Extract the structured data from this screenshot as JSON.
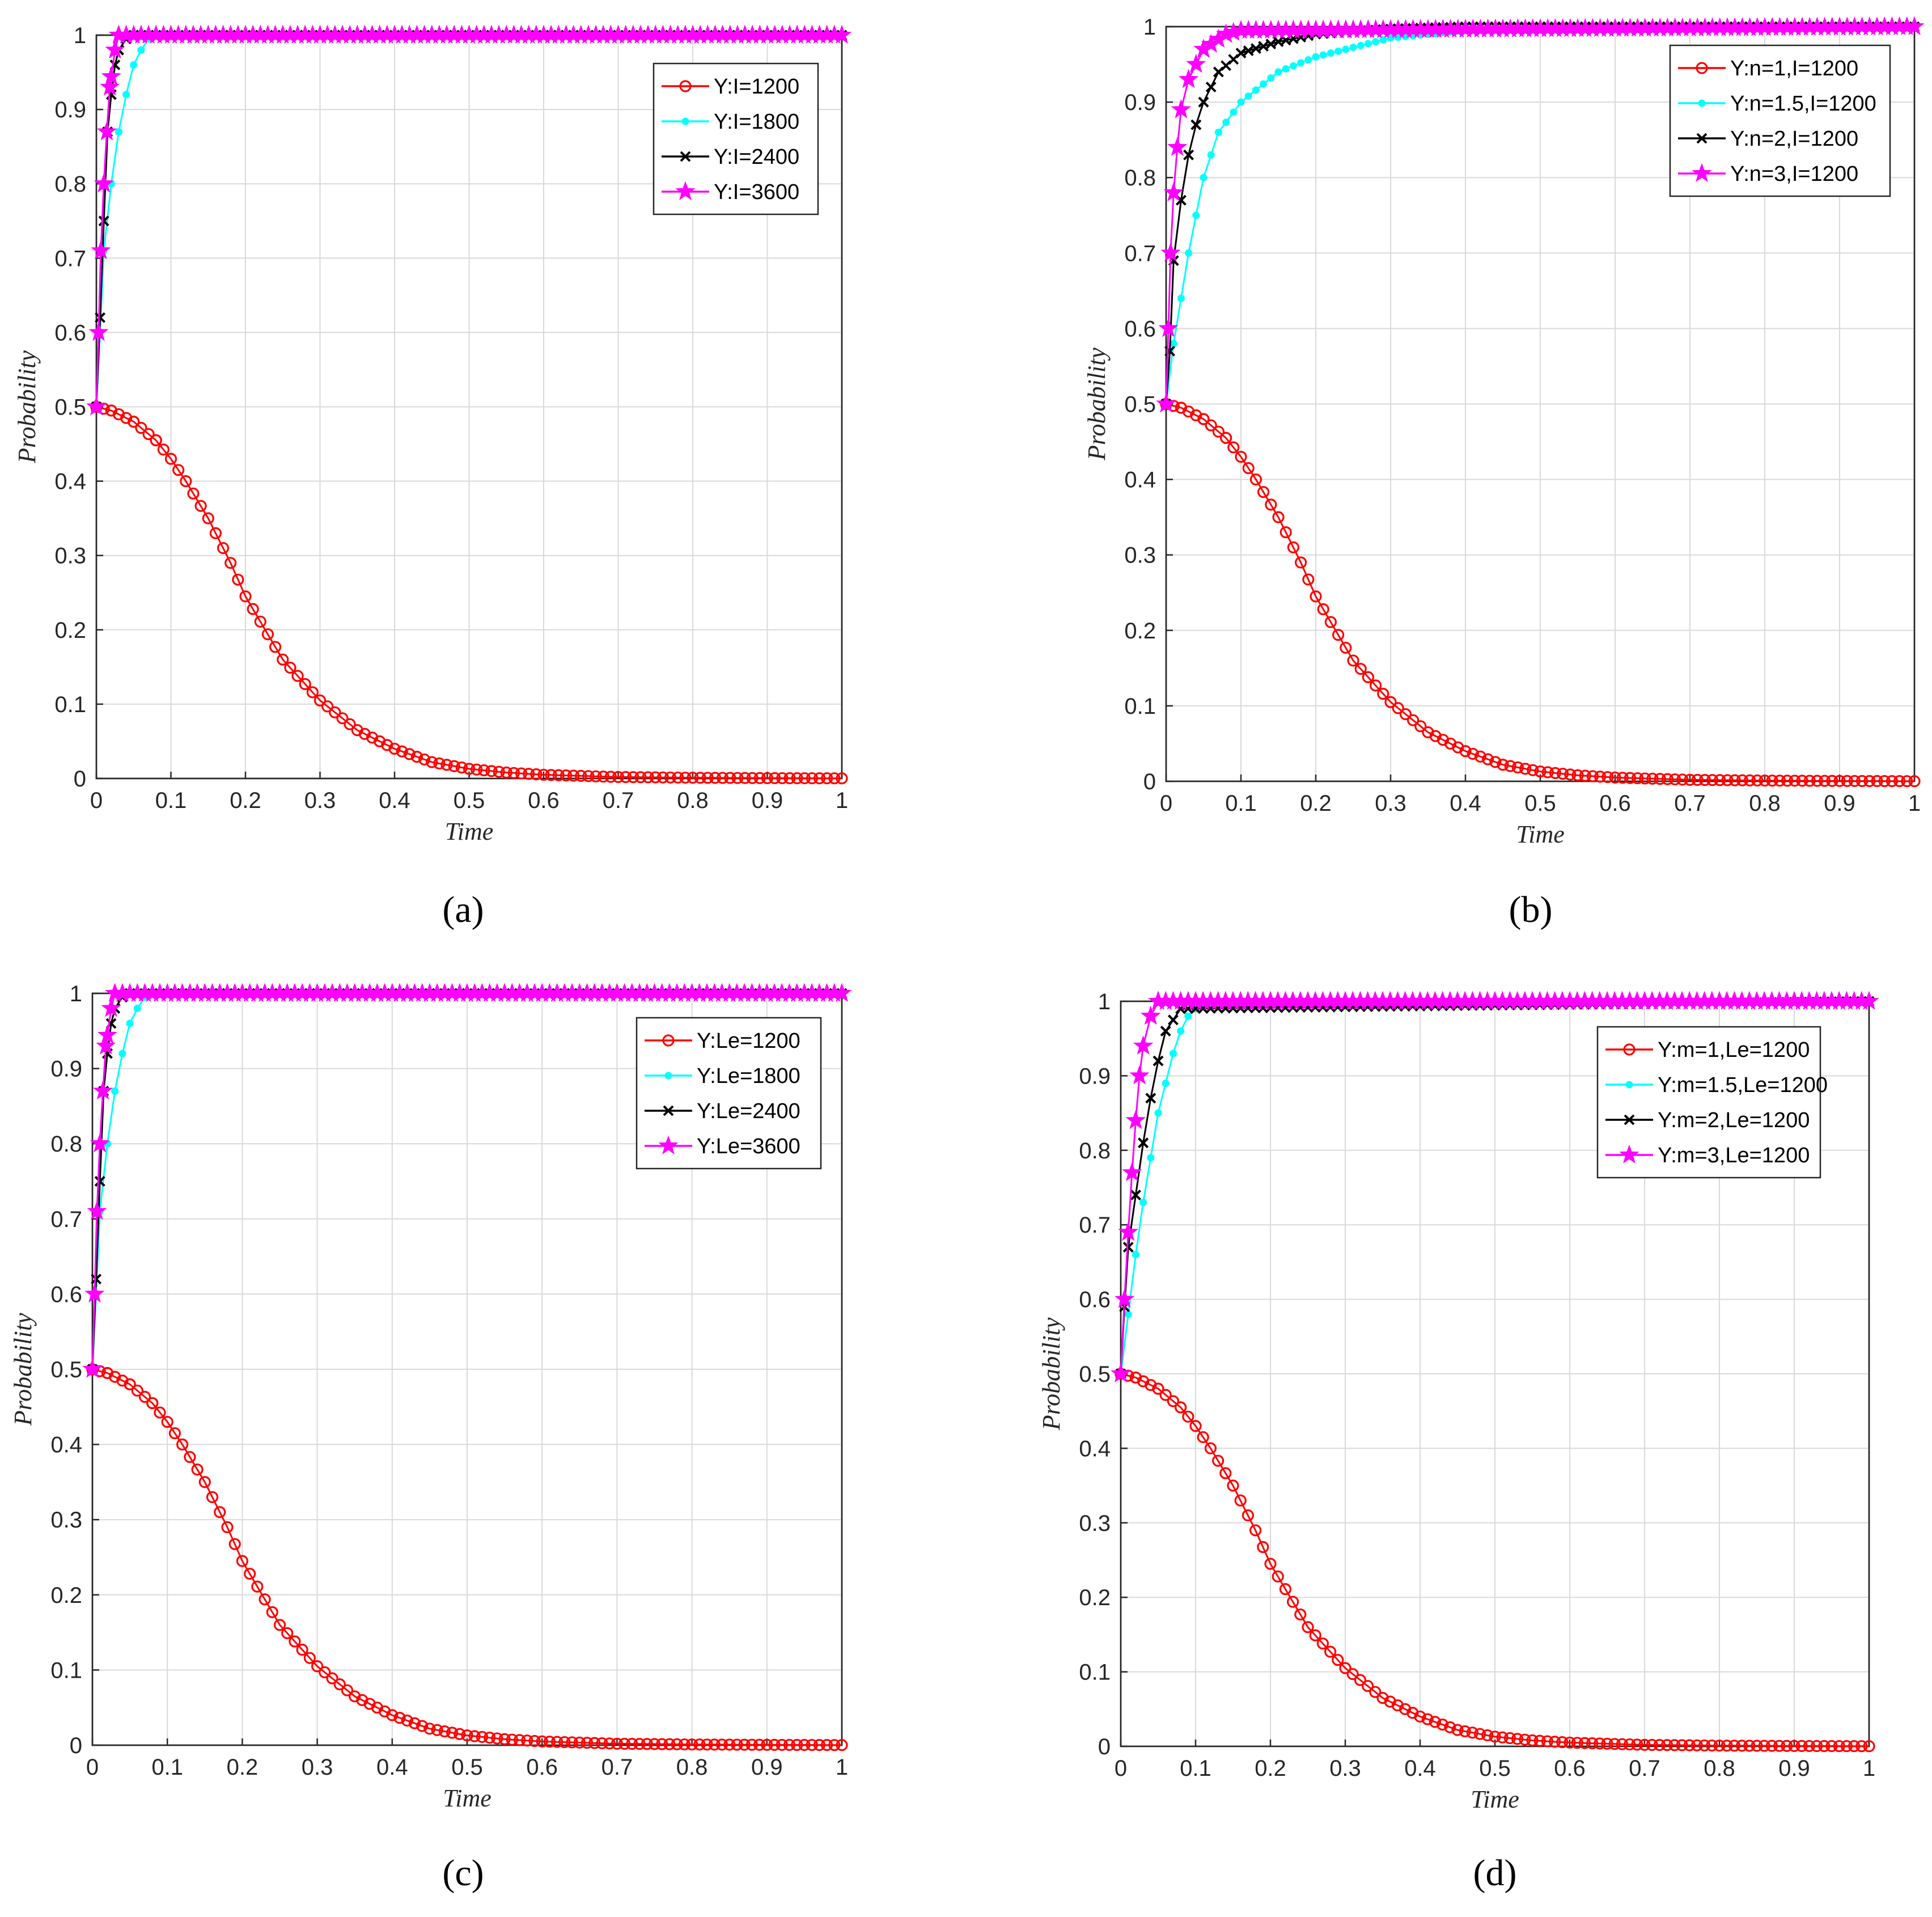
{
  "chart_data": [
    {
      "type": "line",
      "panel": "a",
      "caption": "(a)",
      "xlabel": "Time",
      "ylabel": "Probability",
      "xlim": [
        0,
        1
      ],
      "ylim": [
        0,
        1
      ],
      "xticks": [
        "0",
        "0.1",
        "0.2",
        "0.3",
        "0.4",
        "0.5",
        "0.6",
        "0.7",
        "0.8",
        "0.9",
        "1"
      ],
      "yticks": [
        "0",
        "0.1",
        "0.2",
        "0.3",
        "0.4",
        "0.5",
        "0.6",
        "0.7",
        "0.8",
        "0.9",
        "1"
      ],
      "grid": true,
      "legend_position": "top-right",
      "series": [
        {
          "name": "Y:I=1200",
          "color": "#ff0000",
          "marker": "circle",
          "x": [
            0,
            0.02,
            0.05,
            0.08,
            0.1,
            0.12,
            0.15,
            0.18,
            0.2,
            0.25,
            0.3,
            0.35,
            0.4,
            0.45,
            0.5,
            0.55,
            0.6,
            0.7,
            0.8,
            0.9,
            1.0
          ],
          "y": [
            0.5,
            0.495,
            0.48,
            0.455,
            0.43,
            0.4,
            0.35,
            0.29,
            0.245,
            0.16,
            0.105,
            0.065,
            0.04,
            0.022,
            0.013,
            0.008,
            0.005,
            0.002,
            0.001,
            0.0005,
            0.0002
          ]
        },
        {
          "name": "Y:I=1800",
          "color": "#00ffff",
          "marker": "dot",
          "x": [
            0,
            0.005,
            0.01,
            0.02,
            0.03,
            0.04,
            0.05,
            0.06,
            0.07,
            0.08,
            0.1,
            1.0
          ],
          "y": [
            0.5,
            0.6,
            0.71,
            0.8,
            0.87,
            0.92,
            0.96,
            0.98,
            0.995,
            1.0,
            1.0,
            1.0
          ]
        },
        {
          "name": "Y:I=2400",
          "color": "#000000",
          "marker": "x",
          "x": [
            0,
            0.005,
            0.01,
            0.015,
            0.02,
            0.025,
            0.03,
            0.04,
            0.05,
            1.0
          ],
          "y": [
            0.5,
            0.62,
            0.75,
            0.87,
            0.92,
            0.96,
            0.98,
            0.995,
            1.0,
            1.0
          ]
        },
        {
          "name": "Y:I=3600",
          "color": "#ff00ff",
          "marker": "star",
          "x": [
            0,
            0.003,
            0.006,
            0.01,
            0.014,
            0.018,
            0.025,
            0.03,
            1.0
          ],
          "y": [
            0.5,
            0.6,
            0.71,
            0.8,
            0.87,
            0.93,
            0.98,
            1.0,
            1.0
          ]
        }
      ]
    },
    {
      "type": "line",
      "panel": "b",
      "caption": "(b)",
      "xlabel": "Time",
      "ylabel": "Probability",
      "xlim": [
        0,
        1
      ],
      "ylim": [
        0,
        1
      ],
      "xticks": [
        "0",
        "0.1",
        "0.2",
        "0.3",
        "0.4",
        "0.5",
        "0.6",
        "0.7",
        "0.8",
        "0.9",
        "1"
      ],
      "yticks": [
        "0",
        "0.1",
        "0.2",
        "0.3",
        "0.4",
        "0.5",
        "0.6",
        "0.7",
        "0.8",
        "0.9",
        "1"
      ],
      "grid": true,
      "legend_position": "top-right",
      "series": [
        {
          "name": "Y:n=1,I=1200",
          "color": "#ff0000",
          "marker": "circle",
          "x": [
            0,
            0.02,
            0.05,
            0.08,
            0.1,
            0.12,
            0.15,
            0.18,
            0.2,
            0.25,
            0.3,
            0.35,
            0.4,
            0.45,
            0.5,
            0.55,
            0.6,
            0.7,
            0.8,
            0.9,
            1.0
          ],
          "y": [
            0.5,
            0.495,
            0.48,
            0.455,
            0.43,
            0.4,
            0.35,
            0.29,
            0.245,
            0.16,
            0.105,
            0.065,
            0.04,
            0.022,
            0.013,
            0.008,
            0.005,
            0.002,
            0.001,
            0.0005,
            0.0002
          ]
        },
        {
          "name": "Y:n=1.5,I=1200",
          "color": "#00ffff",
          "marker": "dot",
          "x": [
            0,
            0.01,
            0.02,
            0.03,
            0.04,
            0.05,
            0.07,
            0.1,
            0.15,
            0.2,
            0.3,
            0.4,
            0.5,
            0.7,
            1.0
          ],
          "y": [
            0.5,
            0.58,
            0.64,
            0.7,
            0.75,
            0.8,
            0.86,
            0.9,
            0.94,
            0.96,
            0.985,
            0.995,
            0.998,
            1.0,
            1.0
          ]
        },
        {
          "name": "Y:n=2,I=1200",
          "color": "#000000",
          "marker": "x",
          "x": [
            0,
            0.005,
            0.01,
            0.02,
            0.03,
            0.04,
            0.05,
            0.07,
            0.1,
            0.15,
            0.2,
            0.3,
            0.4,
            1.0
          ],
          "y": [
            0.5,
            0.57,
            0.69,
            0.77,
            0.83,
            0.87,
            0.9,
            0.94,
            0.965,
            0.98,
            0.99,
            0.997,
            1.0,
            1.0
          ]
        },
        {
          "name": "Y:n=3,I=1200",
          "color": "#ff00ff",
          "marker": "star",
          "x": [
            0,
            0.003,
            0.006,
            0.01,
            0.015,
            0.02,
            0.03,
            0.05,
            0.08,
            0.1,
            1.0
          ],
          "y": [
            0.5,
            0.6,
            0.7,
            0.78,
            0.84,
            0.89,
            0.93,
            0.97,
            0.99,
            0.995,
            1.0
          ]
        }
      ]
    },
    {
      "type": "line",
      "panel": "c",
      "caption": "(c)",
      "xlabel": "Time",
      "ylabel": "Probability",
      "xlim": [
        0,
        1
      ],
      "ylim": [
        0,
        1
      ],
      "xticks": [
        "0",
        "0.1",
        "0.2",
        "0.3",
        "0.4",
        "0.5",
        "0.6",
        "0.7",
        "0.8",
        "0.9",
        "1"
      ],
      "yticks": [
        "0",
        "0.1",
        "0.2",
        "0.3",
        "0.4",
        "0.5",
        "0.6",
        "0.7",
        "0.8",
        "0.9",
        "1"
      ],
      "grid": true,
      "legend_position": "top-right",
      "series": [
        {
          "name": "Y:Le=1200",
          "color": "#ff0000",
          "marker": "circle",
          "x": [
            0,
            0.02,
            0.05,
            0.08,
            0.1,
            0.12,
            0.15,
            0.18,
            0.2,
            0.25,
            0.3,
            0.35,
            0.4,
            0.45,
            0.5,
            0.55,
            0.6,
            0.7,
            0.8,
            0.9,
            1.0
          ],
          "y": [
            0.5,
            0.495,
            0.48,
            0.455,
            0.43,
            0.4,
            0.35,
            0.29,
            0.245,
            0.16,
            0.105,
            0.065,
            0.04,
            0.022,
            0.013,
            0.008,
            0.005,
            0.002,
            0.001,
            0.0005,
            0.0002
          ]
        },
        {
          "name": "Y:Le=1800",
          "color": "#00ffff",
          "marker": "dot",
          "x": [
            0,
            0.005,
            0.01,
            0.02,
            0.03,
            0.04,
            0.05,
            0.06,
            0.07,
            0.08,
            0.1,
            1.0
          ],
          "y": [
            0.5,
            0.6,
            0.71,
            0.8,
            0.87,
            0.92,
            0.96,
            0.98,
            0.995,
            1.0,
            1.0,
            1.0
          ]
        },
        {
          "name": "Y:Le=2400",
          "color": "#000000",
          "marker": "x",
          "x": [
            0,
            0.005,
            0.01,
            0.015,
            0.02,
            0.025,
            0.03,
            0.04,
            0.05,
            1.0
          ],
          "y": [
            0.5,
            0.62,
            0.75,
            0.87,
            0.92,
            0.96,
            0.98,
            0.995,
            1.0,
            1.0
          ]
        },
        {
          "name": "Y:Le=3600",
          "color": "#ff00ff",
          "marker": "star",
          "x": [
            0,
            0.003,
            0.006,
            0.01,
            0.014,
            0.018,
            0.025,
            0.03,
            1.0
          ],
          "y": [
            0.5,
            0.6,
            0.71,
            0.8,
            0.87,
            0.93,
            0.98,
            1.0,
            1.0
          ]
        }
      ]
    },
    {
      "type": "line",
      "panel": "d",
      "caption": "(d)",
      "xlabel": "Time",
      "ylabel": "Probability",
      "xlim": [
        0,
        1
      ],
      "ylim": [
        0,
        1
      ],
      "xticks": [
        "0",
        "0.1",
        "0.2",
        "0.3",
        "0.4",
        "0.5",
        "0.6",
        "0.7",
        "0.8",
        "0.9",
        "1"
      ],
      "yticks": [
        "0",
        "0.1",
        "0.2",
        "0.3",
        "0.4",
        "0.5",
        "0.6",
        "0.7",
        "0.8",
        "0.9",
        "1"
      ],
      "grid": true,
      "legend_position": "top-right",
      "series": [
        {
          "name": "Y:m=1,Le=1200",
          "color": "#ff0000",
          "marker": "circle",
          "x": [
            0,
            0.02,
            0.05,
            0.08,
            0.1,
            0.12,
            0.15,
            0.18,
            0.2,
            0.25,
            0.3,
            0.35,
            0.4,
            0.45,
            0.5,
            0.55,
            0.6,
            0.7,
            0.8,
            0.9,
            1.0
          ],
          "y": [
            0.5,
            0.495,
            0.48,
            0.455,
            0.43,
            0.4,
            0.35,
            0.29,
            0.245,
            0.16,
            0.105,
            0.065,
            0.04,
            0.022,
            0.013,
            0.008,
            0.005,
            0.002,
            0.001,
            0.0005,
            0.0002
          ]
        },
        {
          "name": "Y:m=1.5,Le=1200",
          "color": "#00ffff",
          "marker": "dot",
          "x": [
            0,
            0.01,
            0.02,
            0.03,
            0.04,
            0.05,
            0.06,
            0.07,
            0.08,
            0.09,
            0.1,
            0.12,
            1.0
          ],
          "y": [
            0.5,
            0.58,
            0.66,
            0.73,
            0.79,
            0.85,
            0.89,
            0.93,
            0.96,
            0.98,
            0.99,
            1.0,
            1.0
          ]
        },
        {
          "name": "Y:m=2,Le=1200",
          "color": "#000000",
          "marker": "x",
          "x": [
            0,
            0.005,
            0.01,
            0.02,
            0.03,
            0.04,
            0.05,
            0.06,
            0.08,
            1.0
          ],
          "y": [
            0.5,
            0.59,
            0.67,
            0.74,
            0.81,
            0.87,
            0.92,
            0.96,
            0.99,
            1.0
          ]
        },
        {
          "name": "Y:m=3,Le=1200",
          "color": "#ff00ff",
          "marker": "star",
          "x": [
            0,
            0.005,
            0.01,
            0.015,
            0.02,
            0.025,
            0.03,
            0.04,
            0.05,
            1.0
          ],
          "y": [
            0.5,
            0.6,
            0.69,
            0.77,
            0.84,
            0.9,
            0.94,
            0.98,
            1.0,
            1.0
          ]
        }
      ]
    }
  ]
}
